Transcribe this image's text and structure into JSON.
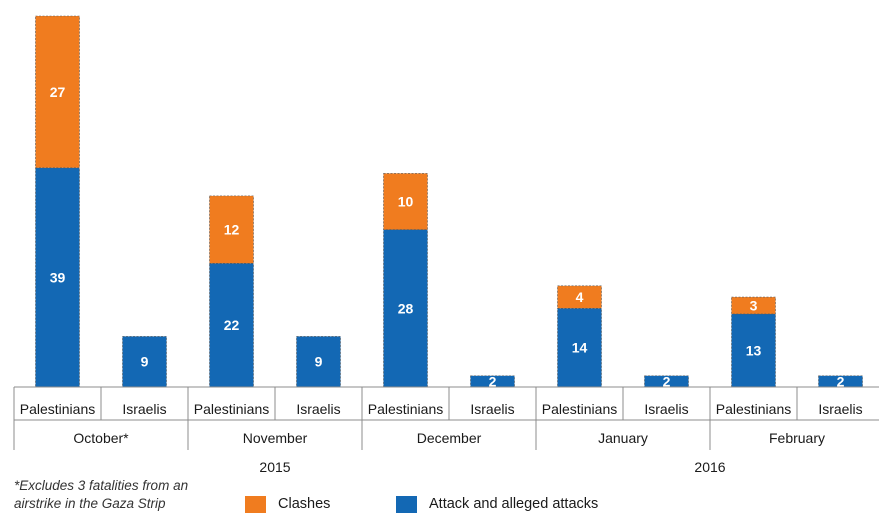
{
  "chart_data": {
    "type": "bar",
    "stacked": true,
    "categories": [
      {
        "label": "Palestinians",
        "month": "October*",
        "year": "2015"
      },
      {
        "label": "Israelis",
        "month": "October*",
        "year": "2015"
      },
      {
        "label": "Palestinians",
        "month": "November",
        "year": "2015"
      },
      {
        "label": "Israelis",
        "month": "November",
        "year": "2015"
      },
      {
        "label": "Palestinians",
        "month": "December",
        "year": "2015"
      },
      {
        "label": "Israelis",
        "month": "December",
        "year": "2015"
      },
      {
        "label": "Palestinians",
        "month": "January",
        "year": "2016"
      },
      {
        "label": "Israelis",
        "month": "January",
        "year": "2016"
      },
      {
        "label": "Palestinians",
        "month": "February",
        "year": "2016"
      },
      {
        "label": "Israelis",
        "month": "February",
        "year": "2016"
      }
    ],
    "months": [
      "October*",
      "November",
      "December",
      "January",
      "February"
    ],
    "years": [
      {
        "label": "2015",
        "span": 3
      },
      {
        "label": "2016",
        "span": 2
      }
    ],
    "series": [
      {
        "name": "Attack and alleged attacks",
        "color": "#1368b4",
        "values": [
          39,
          9,
          22,
          9,
          28,
          2,
          14,
          2,
          13,
          2
        ]
      },
      {
        "name": "Clashes",
        "color": "#f07c1f",
        "values": [
          27,
          0,
          12,
          0,
          10,
          0,
          4,
          0,
          3,
          0
        ]
      }
    ],
    "ylim": [
      0,
      66
    ],
    "legend_position": "bottom",
    "footnote": "*Excludes 3 fatalities from an airstrike in the Gaza Strip"
  }
}
